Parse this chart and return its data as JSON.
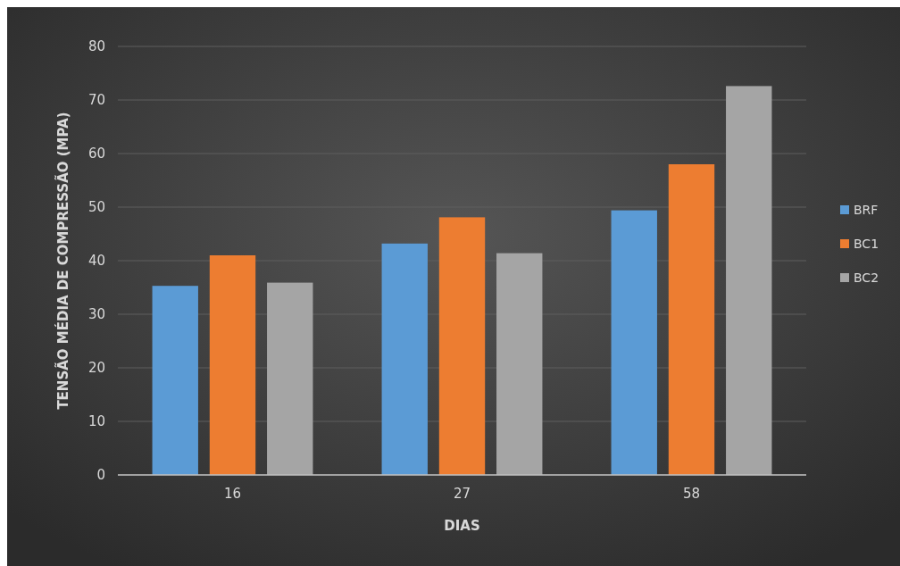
{
  "chart_data": {
    "type": "bar",
    "xlabel": "DIAS",
    "ylabel": "TENSÃO MÉDIA DE COMPRESSÃO (MPA)",
    "categories": [
      "16",
      "27",
      "58"
    ],
    "series": [
      {
        "name": "BRF",
        "color": "#5b9bd5",
        "values": [
          35.3,
          43.2,
          49.4
        ]
      },
      {
        "name": "BC1",
        "color": "#ed7d31",
        "values": [
          41.0,
          48.1,
          58.0
        ]
      },
      {
        "name": "BC2",
        "color": "#a5a5a5",
        "values": [
          35.9,
          41.4,
          72.6
        ]
      }
    ],
    "ylim": [
      0,
      80
    ],
    "yticks": [
      0,
      10,
      20,
      30,
      40,
      50,
      60,
      70,
      80
    ],
    "grid": "y",
    "legend": "right"
  }
}
